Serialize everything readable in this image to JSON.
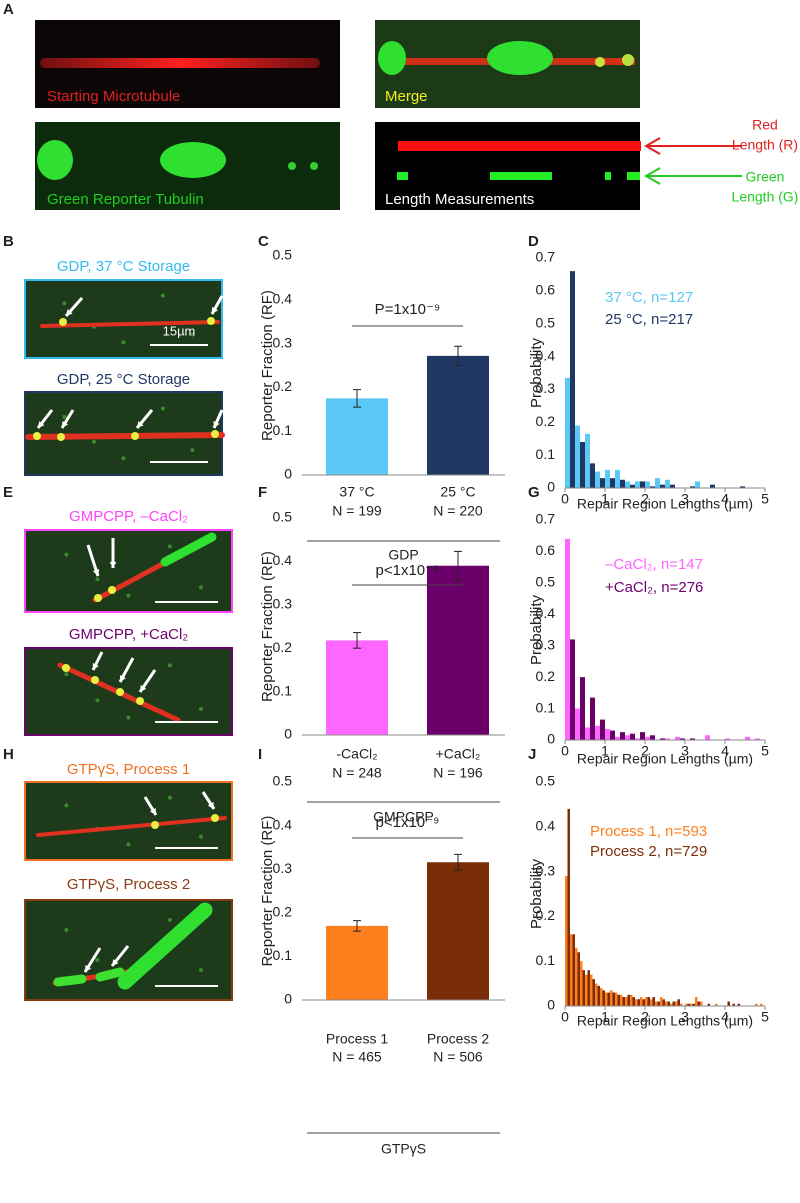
{
  "panel_labels": [
    "A",
    "B",
    "C",
    "D",
    "E",
    "F",
    "G",
    "H",
    "I",
    "J"
  ],
  "panel_a": {
    "captions": [
      "Starting Microtubule",
      "Merge",
      "Green Reporter Tubulin",
      "Length Measurements"
    ],
    "annotations": [
      "Red",
      "Length (R)",
      "Green",
      "Length (G)"
    ]
  },
  "micrographs": [
    "GDP, 37 °C Storage",
    "GDP,  25 °C Storage",
    "GMPCPP, –CaCl₂",
    "GMPCPP, +CaCl₂",
    "GTPγS,  Process 1",
    "GTPγS,  Process 2"
  ],
  "scale_label": "15µm",
  "chart_data": [
    {
      "type": "bar",
      "ylabel": "Reporter Fraction (RF)",
      "categories": [
        "37 °C",
        "25 °C"
      ],
      "n_labels": [
        "N = 199",
        "N = 220"
      ],
      "group_label": "GDP",
      "values": [
        0.175,
        0.272
      ],
      "errors": [
        0.02,
        0.022
      ],
      "colors": [
        "#5bc8f5",
        "#1f3864"
      ],
      "annotation": "P=1x10⁻⁹",
      "ylim": [
        0,
        0.5
      ],
      "yticks": [
        0,
        0.1,
        0.2,
        0.3,
        0.4,
        0.5
      ]
    },
    {
      "type": "histogram",
      "ylabel": "Probability",
      "xlabel": "Repair Region Lengths (µm)",
      "bins": [
        0,
        0.25,
        0.5,
        0.75,
        1,
        1.25,
        1.5,
        1.75,
        2,
        2.25,
        2.5,
        2.75,
        3,
        3.25,
        3.5,
        3.75,
        4,
        4.25,
        4.5,
        4.75,
        5
      ],
      "series": [
        {
          "name": "37 °C, n=127",
          "color": "#5bc8f5",
          "values": [
            0.335,
            0.19,
            0.165,
            0.05,
            0.055,
            0.055,
            0.02,
            0.02,
            0.02,
            0.03,
            0.025,
            0,
            0,
            0.02,
            0,
            0,
            0,
            0,
            0,
            0
          ]
        },
        {
          "name": "25 °C, n=217",
          "color": "#1f3864",
          "values": [
            0.66,
            0.14,
            0.075,
            0.03,
            0.03,
            0.025,
            0.01,
            0.02,
            0.005,
            0.01,
            0.01,
            0,
            0.005,
            0,
            0.01,
            0,
            0,
            0.005,
            0,
            0
          ]
        }
      ],
      "xlim": [
        0,
        5
      ],
      "xticks": [
        0,
        1,
        2,
        3,
        4,
        5
      ],
      "ylim": [
        0,
        0.7
      ],
      "yticks": [
        0,
        0.1,
        0.2,
        0.3,
        0.4,
        0.5,
        0.6,
        0.7
      ]
    },
    {
      "type": "bar",
      "ylabel": "Reporter Fraction (RF)",
      "categories": [
        "-CaCl₂",
        "+CaCl₂"
      ],
      "n_labels": [
        "N = 248",
        "N = 196"
      ],
      "group_label": "GMPCPP",
      "values": [
        0.218,
        0.39
      ],
      "errors": [
        0.018,
        0.033
      ],
      "colors": [
        "#ff66ff",
        "#6b006b"
      ],
      "annotation": "p<1x10⁻⁹",
      "ylim": [
        0,
        0.5
      ],
      "yticks": [
        0,
        0.1,
        0.2,
        0.3,
        0.4,
        0.5
      ]
    },
    {
      "type": "histogram",
      "ylabel": "Probability",
      "xlabel": "Repair Region Lengths (µm)",
      "bins": [
        0,
        0.25,
        0.5,
        0.75,
        1,
        1.25,
        1.5,
        1.75,
        2,
        2.25,
        2.5,
        2.75,
        3,
        3.25,
        3.5,
        3.75,
        4,
        4.25,
        4.5,
        4.75,
        5
      ],
      "series": [
        {
          "name": "–CaCl₂, n=147",
          "color": "#ff66ff",
          "values": [
            0.64,
            0.1,
            0.04,
            0.045,
            0.035,
            0.01,
            0.015,
            0.005,
            0.01,
            0,
            0.005,
            0.01,
            0,
            0,
            0.015,
            0,
            0.005,
            0,
            0.01,
            0.005
          ]
        },
        {
          "name": "+CaCl₂, n=276",
          "color": "#6b006b",
          "values": [
            0.32,
            0.2,
            0.135,
            0.065,
            0.03,
            0.025,
            0.02,
            0.025,
            0.015,
            0.005,
            0,
            0.005,
            0.005,
            0,
            0,
            0,
            0,
            0,
            0,
            0
          ]
        }
      ],
      "xlim": [
        0,
        5
      ],
      "xticks": [
        0,
        1,
        2,
        3,
        4,
        5
      ],
      "ylim": [
        0,
        0.7
      ],
      "yticks": [
        0,
        0.1,
        0.2,
        0.3,
        0.4,
        0.5,
        0.6,
        0.7
      ]
    },
    {
      "type": "bar",
      "ylabel": "Reporter Fraction (RF)",
      "categories": [
        "Process 1",
        "Process 2"
      ],
      "n_labels": [
        "N = 465",
        "N = 506"
      ],
      "group_label": "GTPγS",
      "values": [
        0.17,
        0.316
      ],
      "errors": [
        0.012,
        0.018
      ],
      "colors": [
        "#ff7f1f",
        "#7b2d0a"
      ],
      "annotation": "p<1x10⁻⁹",
      "ylim": [
        0,
        0.5
      ],
      "yticks": [
        0,
        0.1,
        0.2,
        0.3,
        0.4,
        0.5
      ]
    },
    {
      "type": "histogram",
      "ylabel": "Probability",
      "xlabel": "Repair Region Lengths (µm)",
      "bins": [
        0,
        0.125,
        0.25,
        0.375,
        0.5,
        0.625,
        0.75,
        0.875,
        1,
        1.125,
        1.25,
        1.375,
        1.5,
        1.625,
        1.75,
        1.875,
        2,
        2.125,
        2.25,
        2.375,
        2.5,
        2.625,
        2.75,
        2.875,
        3,
        3.125,
        3.25,
        3.375,
        3.5,
        3.625,
        3.75,
        3.875,
        4,
        4.125,
        4.25,
        4.375,
        4.5,
        4.625,
        4.75,
        4.875,
        5
      ],
      "series": [
        {
          "name": "Process 1, n=593",
          "color": "#ff7f1f",
          "values": [
            0.29,
            0.16,
            0.13,
            0.1,
            0.07,
            0.07,
            0.05,
            0.04,
            0.03,
            0.035,
            0.03,
            0.025,
            0.02,
            0.025,
            0.015,
            0.02,
            0.02,
            0.015,
            0.01,
            0.02,
            0.01,
            0.005,
            0.01,
            0.005,
            0.005,
            0.005,
            0.02,
            0.01,
            0,
            0,
            0.005,
            0,
            0,
            0,
            0,
            0,
            0,
            0,
            0.005,
            0.005
          ]
        },
        {
          "name": "Process 2, n=729",
          "color": "#7b2d0a",
          "values": [
            0.44,
            0.16,
            0.12,
            0.08,
            0.08,
            0.06,
            0.045,
            0.035,
            0.03,
            0.03,
            0.025,
            0.02,
            0.025,
            0.02,
            0.015,
            0.015,
            0.02,
            0.02,
            0.01,
            0.015,
            0.01,
            0.01,
            0.015,
            0,
            0.005,
            0.005,
            0.01,
            0,
            0.005,
            0,
            0,
            0,
            0.01,
            0.005,
            0.005,
            0,
            0,
            0,
            0,
            0
          ]
        }
      ],
      "xlim": [
        0,
        5
      ],
      "xticks": [
        0,
        1,
        2,
        3,
        4,
        5
      ],
      "ylim": [
        0,
        0.5
      ],
      "yticks": [
        0,
        0.1,
        0.2,
        0.3,
        0.4,
        0.5
      ]
    }
  ]
}
